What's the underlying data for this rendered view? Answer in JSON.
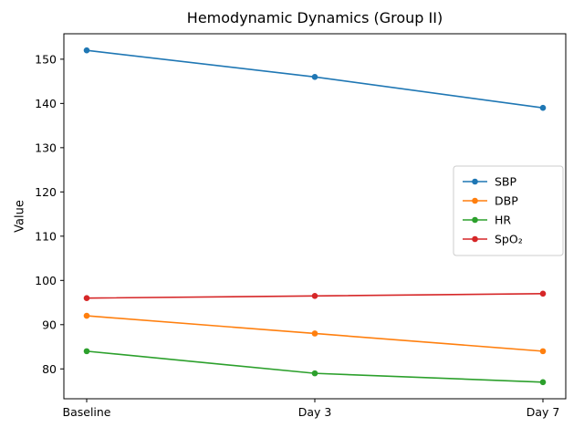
{
  "figure": {
    "title": "Hemodynamic Dynamics (Group II)",
    "ylabel": "Value"
  },
  "chart_data": {
    "type": "line",
    "title": "Hemodynamic Dynamics (Group II)",
    "xlabel": "",
    "ylabel": "Value",
    "categories": [
      "Baseline",
      "Day 3",
      "Day 7"
    ],
    "series": [
      {
        "name": "SBP",
        "color": "#1f77b4",
        "values": [
          152,
          146,
          139
        ]
      },
      {
        "name": "DBP",
        "color": "#ff7f0e",
        "values": [
          92,
          88,
          84
        ]
      },
      {
        "name": "HR",
        "color": "#2ca02c",
        "values": [
          84,
          79,
          77
        ]
      },
      {
        "name": "SpO₂",
        "color": "#d62728",
        "values": [
          96,
          96.5,
          97
        ]
      }
    ],
    "yticks": [
      80,
      90,
      100,
      110,
      120,
      130,
      140,
      150
    ],
    "ylim": [
      73.25,
      155.75
    ],
    "grid": false,
    "marker": "circle",
    "legend_position": "center right",
    "frame_color": "#000000",
    "legend_border_color": "#cccccc"
  }
}
